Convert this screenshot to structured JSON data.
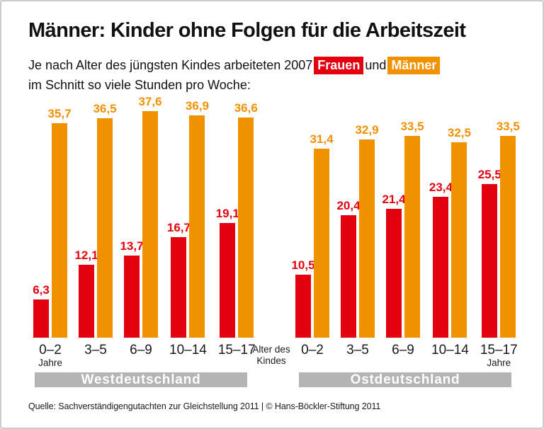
{
  "header": {
    "title": "Männer: Kinder ohne Folgen für die Arbeitszeit"
  },
  "subtitle": {
    "line1_prefix": "Je nach Alter des jüngsten Kindes arbeiteten 2007",
    "chip_frauen": "Frauen",
    "mid": "und",
    "chip_maenner": "Männer",
    "line2": "im Schnitt so viele Stunden pro Woche:"
  },
  "colors": {
    "frauen": "#e3000f",
    "maenner": "#f09100",
    "band_gray": "#b4b4b4"
  },
  "chart_data": {
    "type": "bar",
    "title": "Männer: Kinder ohne Folgen für die Arbeitszeit",
    "unit": "Stunden pro Woche",
    "year": "2007",
    "legend": [
      "Frauen",
      "Männer"
    ],
    "ylim": [
      0,
      40
    ],
    "grid": false,
    "axis_note_lines": [
      "Alter des",
      "Kindes"
    ],
    "groups": [
      {
        "label": "Westdeutschland",
        "categories": [
          "0–2",
          "3–5",
          "6–9",
          "10–14",
          "15–17"
        ],
        "sub_labels": [
          "Jahre",
          "",
          "",
          "",
          ""
        ],
        "values": {
          "Frauen": [
            6.3,
            12.1,
            13.7,
            16.7,
            19.1
          ],
          "Männer": [
            35.7,
            36.5,
            37.6,
            36.9,
            36.6
          ]
        },
        "display_labels": {
          "Frauen": [
            "6,3",
            "12,1",
            "13,7",
            "16,7",
            "19,1"
          ],
          "Männer": [
            "35,7",
            "36,5",
            "37,6",
            "36,9",
            "36,6"
          ]
        }
      },
      {
        "label": "Ostdeutschland",
        "categories": [
          "0–2",
          "3–5",
          "6–9",
          "10–14",
          "15–17"
        ],
        "sub_labels": [
          "",
          "",
          "",
          "",
          "Jahre"
        ],
        "values": {
          "Frauen": [
            10.5,
            20.4,
            21.4,
            23.4,
            25.5
          ],
          "Männer": [
            31.4,
            32.9,
            33.5,
            32.5,
            33.5
          ]
        },
        "display_labels": {
          "Frauen": [
            "10,5",
            "20,4",
            "21,4",
            "23,4",
            "25,5"
          ],
          "Männer": [
            "31,4",
            "32,9",
            "33,5",
            "32,5",
            "33,5"
          ]
        }
      }
    ]
  },
  "footer": {
    "source": "Quelle: Sachverständigengutachten zur Gleichstellung 2011 | © Hans-Böckler-Stiftung 2011"
  }
}
